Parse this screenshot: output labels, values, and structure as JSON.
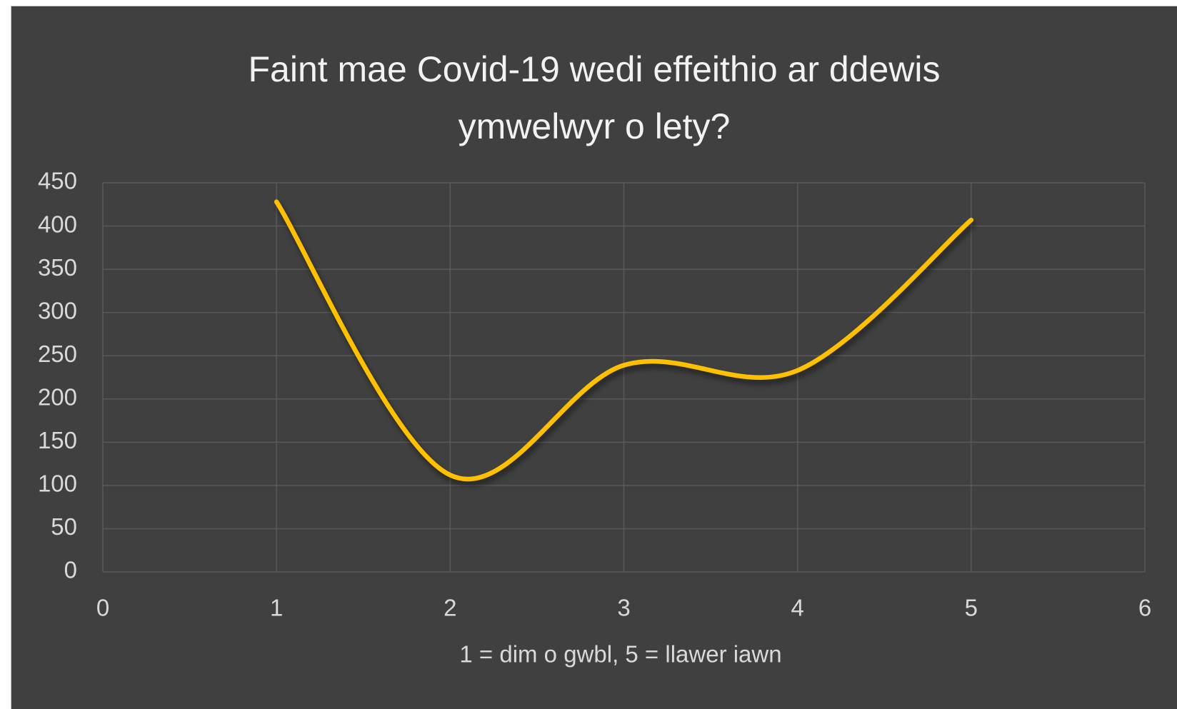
{
  "chart_data": {
    "type": "line",
    "smooth": true,
    "title": "Faint mae Covid-19 wedi effeithio ar ddewis ymwelwyr o lety?",
    "x_label": "1 = dim o gwbl, 5 = llawer iawn",
    "x": [
      1,
      2,
      3,
      4,
      5
    ],
    "series": [
      {
        "name": "Series1",
        "color": "#ffc000",
        "values": [
          428,
          112,
          239,
          233,
          407
        ]
      }
    ],
    "xlim": [
      0,
      6
    ],
    "xticks": [
      0,
      1,
      2,
      3,
      4,
      5,
      6
    ],
    "ylim": [
      0,
      450
    ],
    "yticks": [
      0,
      50,
      100,
      150,
      200,
      250,
      300,
      350,
      400,
      450
    ],
    "grid": true
  }
}
